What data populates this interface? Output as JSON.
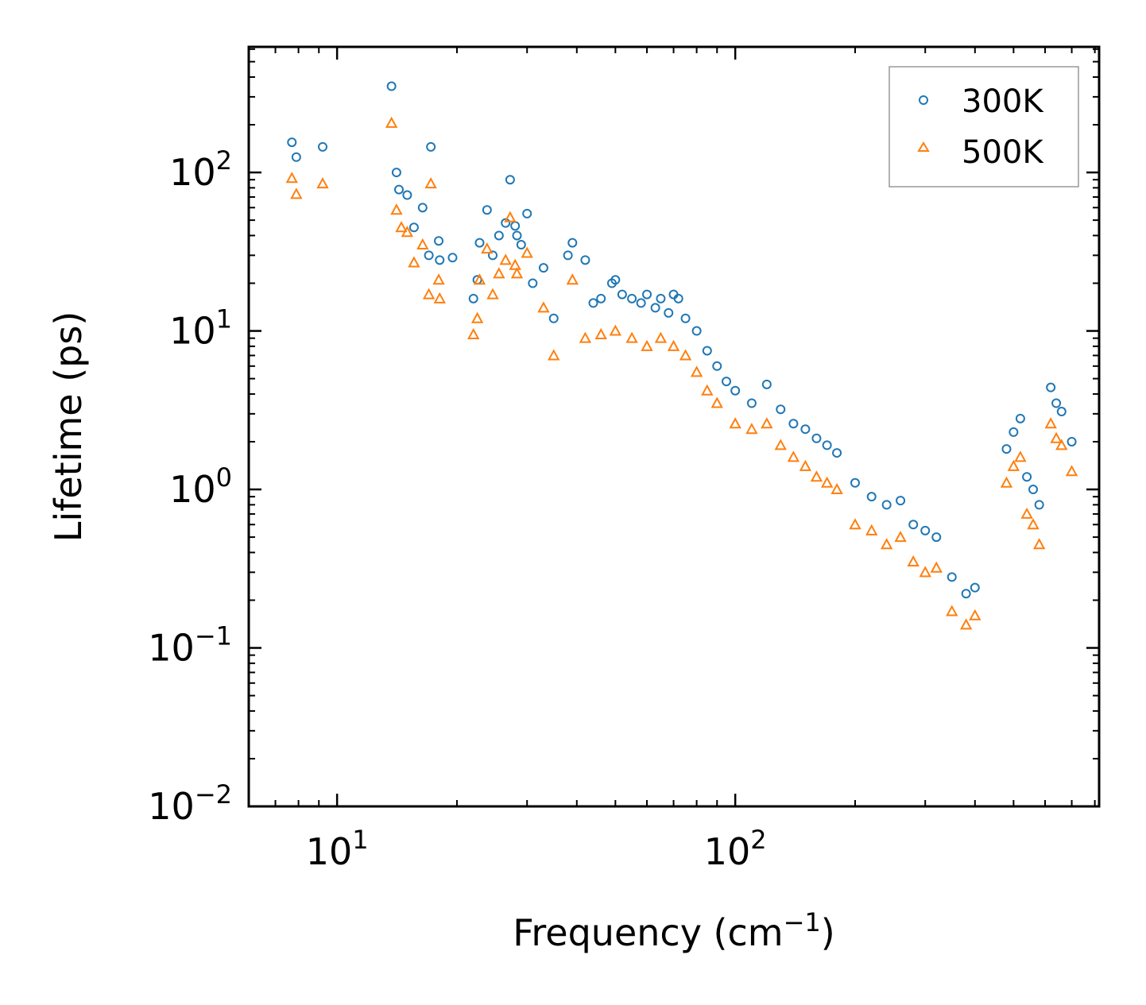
{
  "chart_data": {
    "type": "scatter",
    "title": "",
    "xlabel": "Frequency (cm",
    "xlabel_sup": "−1",
    "xlabel_end": ")",
    "ylabel": "Lifetime (ps)",
    "xscale": "log",
    "yscale": "log",
    "xlim": [
      6.0,
      820
    ],
    "ylim": [
      0.01,
      620
    ],
    "x_ticks": [
      {
        "value": 10,
        "base": "10",
        "exp": "1"
      },
      {
        "value": 100,
        "base": "10",
        "exp": "2"
      }
    ],
    "y_ticks": [
      {
        "value": 0.01,
        "base": "10",
        "exp": "−2"
      },
      {
        "value": 0.1,
        "base": "10",
        "exp": "−1"
      },
      {
        "value": 1,
        "base": "10",
        "exp": "0"
      },
      {
        "value": 10,
        "base": "10",
        "exp": "1"
      },
      {
        "value": 100,
        "base": "10",
        "exp": "2"
      }
    ],
    "legend_position": "top-right",
    "series": [
      {
        "name": "300K",
        "marker": "circle",
        "color": "#1f77b4",
        "points": [
          [
            7.7,
            155
          ],
          [
            7.9,
            125
          ],
          [
            9.2,
            145
          ],
          [
            13.7,
            350
          ],
          [
            14.1,
            100
          ],
          [
            14.3,
            78
          ],
          [
            15,
            72
          ],
          [
            15.6,
            45
          ],
          [
            16.4,
            60
          ],
          [
            17,
            30
          ],
          [
            17.2,
            145
          ],
          [
            18,
            37
          ],
          [
            18.1,
            28
          ],
          [
            19.5,
            29
          ],
          [
            22,
            16
          ],
          [
            22.5,
            21
          ],
          [
            22.8,
            36
          ],
          [
            23.8,
            58
          ],
          [
            24.6,
            30
          ],
          [
            25.5,
            40
          ],
          [
            26.5,
            48
          ],
          [
            27.2,
            90
          ],
          [
            28,
            46
          ],
          [
            28.3,
            40
          ],
          [
            29,
            35
          ],
          [
            30,
            55
          ],
          [
            31,
            20
          ],
          [
            33,
            25
          ],
          [
            35,
            12
          ],
          [
            38,
            30
          ],
          [
            39,
            36
          ],
          [
            42,
            28
          ],
          [
            44,
            15
          ],
          [
            46,
            16
          ],
          [
            49,
            20
          ],
          [
            50,
            21
          ],
          [
            52,
            17
          ],
          [
            55,
            16
          ],
          [
            58,
            15
          ],
          [
            60,
            17
          ],
          [
            63,
            14
          ],
          [
            65,
            16
          ],
          [
            68,
            13
          ],
          [
            70,
            17
          ],
          [
            72,
            16
          ],
          [
            75,
            12
          ],
          [
            80,
            10
          ],
          [
            85,
            7.5
          ],
          [
            90,
            6
          ],
          [
            95,
            4.8
          ],
          [
            100,
            4.2
          ],
          [
            110,
            3.5
          ],
          [
            120,
            4.6
          ],
          [
            130,
            3.2
          ],
          [
            140,
            2.6
          ],
          [
            150,
            2.4
          ],
          [
            160,
            2.1
          ],
          [
            170,
            1.9
          ],
          [
            180,
            1.7
          ],
          [
            200,
            1.1
          ],
          [
            220,
            0.9
          ],
          [
            240,
            0.8
          ],
          [
            260,
            0.85
          ],
          [
            280,
            0.6
          ],
          [
            300,
            0.55
          ],
          [
            320,
            0.5
          ],
          [
            350,
            0.28
          ],
          [
            380,
            0.22
          ],
          [
            400,
            0.24
          ],
          [
            480,
            1.8
          ],
          [
            500,
            2.3
          ],
          [
            520,
            2.8
          ],
          [
            540,
            1.2
          ],
          [
            560,
            1.0
          ],
          [
            580,
            0.8
          ],
          [
            620,
            4.4
          ],
          [
            640,
            3.5
          ],
          [
            660,
            3.1
          ],
          [
            700,
            2.0
          ]
        ]
      },
      {
        "name": "500K",
        "marker": "triangle",
        "color": "#ff7f0e",
        "points": [
          [
            7.7,
            92
          ],
          [
            7.9,
            73
          ],
          [
            9.2,
            85
          ],
          [
            13.7,
            205
          ],
          [
            14.1,
            58
          ],
          [
            14.5,
            45
          ],
          [
            15,
            42
          ],
          [
            15.6,
            27
          ],
          [
            16.4,
            35
          ],
          [
            17,
            17
          ],
          [
            17.2,
            85
          ],
          [
            18,
            21
          ],
          [
            18.1,
            16
          ],
          [
            22,
            9.5
          ],
          [
            22.5,
            12
          ],
          [
            22.8,
            21
          ],
          [
            23.8,
            33
          ],
          [
            24.6,
            17
          ],
          [
            25.5,
            23
          ],
          [
            26.5,
            28
          ],
          [
            27.2,
            52
          ],
          [
            28,
            26
          ],
          [
            28.3,
            23
          ],
          [
            30,
            31
          ],
          [
            33,
            14
          ],
          [
            35,
            7
          ],
          [
            39,
            21
          ],
          [
            42,
            9
          ],
          [
            46,
            9.5
          ],
          [
            50,
            10
          ],
          [
            55,
            9
          ],
          [
            60,
            8
          ],
          [
            65,
            9
          ],
          [
            70,
            8
          ],
          [
            75,
            7
          ],
          [
            80,
            5.5
          ],
          [
            85,
            4.2
          ],
          [
            90,
            3.5
          ],
          [
            100,
            2.6
          ],
          [
            110,
            2.4
          ],
          [
            120,
            2.6
          ],
          [
            130,
            1.9
          ],
          [
            140,
            1.6
          ],
          [
            150,
            1.4
          ],
          [
            160,
            1.2
          ],
          [
            170,
            1.1
          ],
          [
            180,
            1.0
          ],
          [
            200,
            0.6
          ],
          [
            220,
            0.55
          ],
          [
            240,
            0.45
          ],
          [
            260,
            0.5
          ],
          [
            280,
            0.35
          ],
          [
            300,
            0.3
          ],
          [
            320,
            0.32
          ],
          [
            350,
            0.17
          ],
          [
            380,
            0.14
          ],
          [
            400,
            0.16
          ],
          [
            480,
            1.1
          ],
          [
            500,
            1.4
          ],
          [
            520,
            1.6
          ],
          [
            540,
            0.7
          ],
          [
            560,
            0.6
          ],
          [
            580,
            0.45
          ],
          [
            620,
            2.6
          ],
          [
            640,
            2.1
          ],
          [
            660,
            1.9
          ],
          [
            700,
            1.3
          ]
        ]
      }
    ]
  }
}
